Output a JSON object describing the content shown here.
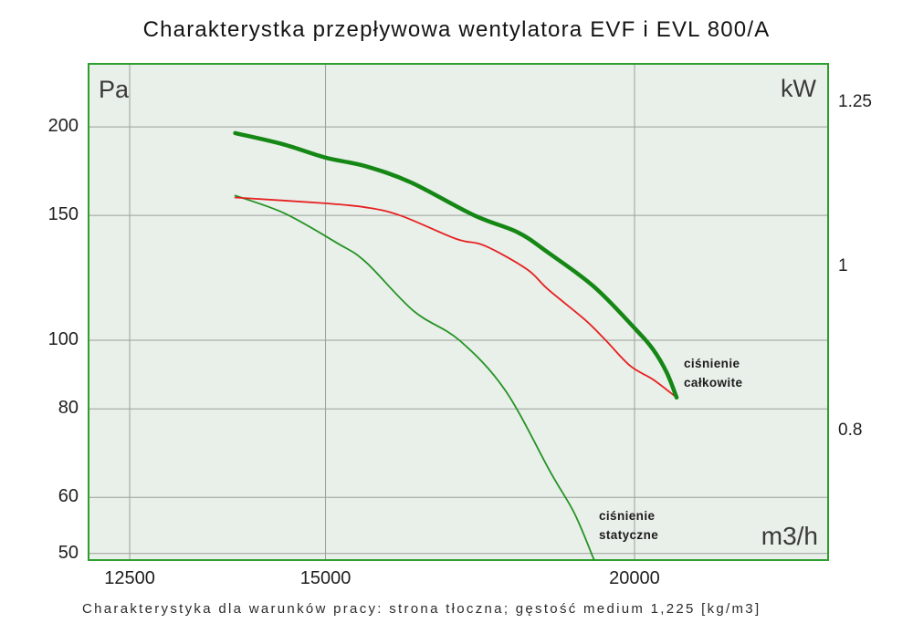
{
  "title": "Charakterystka przepływowa wentylatora EVF i EVL 800/A",
  "caption": "Charakterystyka dla warunków pracy: strona tłoczna; gęstość medium 1,225 [kg/m3]",
  "axes": {
    "left": {
      "unit": "Pa"
    },
    "right": {
      "unit": "kW"
    },
    "x": {
      "unit": "m3/h"
    }
  },
  "labels": {
    "total": {
      "line1": "ciśnienie",
      "line2": "całkowite"
    },
    "static": {
      "line1": "ciśnienie",
      "line2": "statyczne"
    }
  },
  "colors": {
    "plot_bg": "#e9efe9",
    "plot_border": "#2e9e2e",
    "grid": "#9a9f9a",
    "total_pressure": "#148714",
    "static_pressure": "#249324",
    "red_curve": "#e62020",
    "tick_text": "#1f1f1f"
  },
  "chart_data": {
    "type": "line",
    "title": "Charakterystka przepływowa wentylatora EVF i EVL 800/A",
    "x_axis": {
      "label": "m3/h",
      "scale": "log",
      "ticks": [
        12500,
        15000,
        20000
      ],
      "range": [
        12020,
        23970
      ],
      "grid": true
    },
    "y_axis_left": {
      "label": "Pa",
      "scale": "log",
      "ticks": [
        200,
        150,
        100,
        80,
        60,
        50
      ],
      "range": [
        48.8,
        246.2
      ],
      "grid": true
    },
    "y_axis_right": {
      "label": "kW",
      "scale": "log",
      "ticks": [
        1.25,
        1,
        0.8
      ],
      "range": [
        0.67,
        1.318
      ],
      "grid": false
    },
    "legend": "none",
    "series": [
      {
        "key": "static-pressure",
        "name": "ciśnienie statyczne",
        "color_key": "static_pressure",
        "stroke_width": 1.8,
        "axis": "left",
        "points": [
          [
            13790,
            160
          ],
          [
            14440,
            151
          ],
          [
            15170,
            137
          ],
          [
            15570,
            129
          ],
          [
            16280,
            110
          ],
          [
            16990,
            100
          ],
          [
            17730,
            85
          ],
          [
            18500,
            65
          ],
          [
            18910,
            57
          ],
          [
            19260,
            49
          ]
        ]
      },
      {
        "key": "red-unlabeled",
        "name": "red curve (no on-screen label)",
        "color_key": "red_curve",
        "stroke_width": 1.8,
        "axis": "left",
        "points": [
          [
            13790,
            159
          ],
          [
            15000,
            156
          ],
          [
            15570,
            154
          ],
          [
            16080,
            150
          ],
          [
            16940,
            139
          ],
          [
            17390,
            136
          ],
          [
            18090,
            126
          ],
          [
            18450,
            118
          ],
          [
            19090,
            107
          ],
          [
            19470,
            100
          ],
          [
            19920,
            92
          ],
          [
            20350,
            88
          ],
          [
            20800,
            83
          ]
        ]
      },
      {
        "key": "total-pressure",
        "name": "ciśnienie całkowite",
        "color_key": "total_pressure",
        "stroke_width": 4.5,
        "axis": "left",
        "points": [
          [
            13790,
            196
          ],
          [
            14420,
            189
          ],
          [
            15000,
            181
          ],
          [
            15570,
            176
          ],
          [
            16240,
            167
          ],
          [
            17230,
            150
          ],
          [
            17940,
            142
          ],
          [
            18450,
            133
          ],
          [
            19260,
            119
          ],
          [
            20000,
            104
          ],
          [
            20350,
            97
          ],
          [
            20610,
            90
          ],
          [
            20800,
            83
          ]
        ]
      }
    ]
  }
}
